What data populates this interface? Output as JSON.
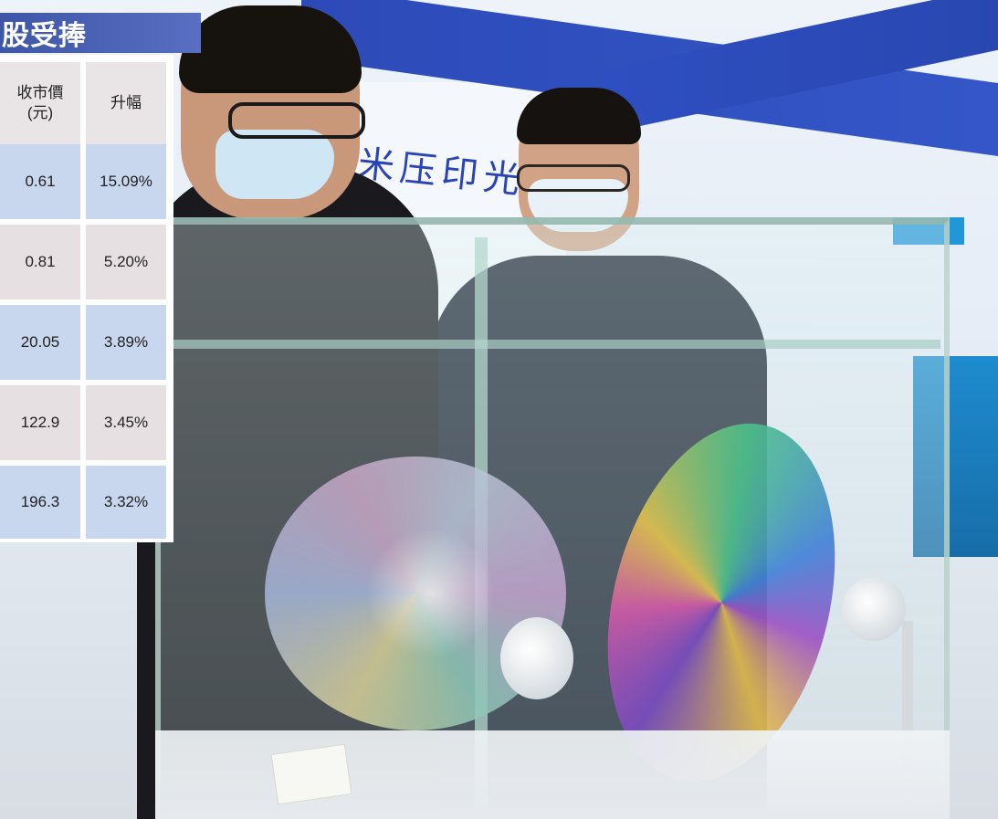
{
  "overlay": {
    "title": "股受捧",
    "header": {
      "price_line1": "收市價",
      "price_line2": "(元)",
      "change": "升幅"
    },
    "rows": [
      {
        "price": "0.61",
        "change": "15.09%"
      },
      {
        "price": "0.81",
        "change": "5.20%"
      },
      {
        "price": "20.05",
        "change": "3.89%"
      },
      {
        "price": "122.9",
        "change": "3.45%"
      },
      {
        "price": "196.3",
        "change": "3.32%"
      }
    ],
    "colors": {
      "title_band": "#4a62b5",
      "row_blue": "#c8d6ee",
      "row_grey": "#e6e0e2"
    }
  },
  "photo": {
    "booth_sign_text": "米压印光"
  }
}
